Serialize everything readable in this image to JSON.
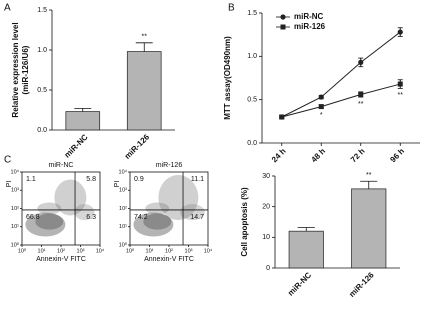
{
  "panel_labels": [
    "A",
    "B",
    "C"
  ],
  "chart_data": [
    {
      "type": "bar",
      "ylabel": [
        "Relative expression level",
        "(miR-126/U6)"
      ],
      "categories": [
        "miR-NC",
        "miR-126"
      ],
      "values": [
        0.23,
        0.98
      ],
      "errors": [
        0.04,
        0.11
      ],
      "color": "#b4b4b4",
      "ylim": [
        0,
        1.5
      ],
      "yticks": [
        {
          "value": 0,
          "label": "0.0"
        },
        0.5,
        {
          "value": 1,
          "label": "1.0"
        },
        1.5
      ],
      "annotations": [
        {
          "x": "miR-126",
          "text": "**"
        }
      ]
    },
    {
      "type": "line",
      "ylabel": "MTT assay(OD490nm)",
      "categories": [
        "24 h",
        "48 h",
        "72 h",
        "96 h"
      ],
      "series": [
        {
          "name": "miR-NC",
          "color": "#222222",
          "marker": "circle",
          "values": [
            0.3,
            0.53,
            0.93,
            1.28
          ],
          "errors": [
            0.02,
            0.02,
            0.05,
            0.05
          ]
        },
        {
          "name": "miR-126",
          "color": "#222222",
          "marker": "square",
          "values": [
            0.3,
            0.42,
            0.56,
            0.68
          ],
          "errors": [
            0.02,
            0.02,
            0.03,
            0.05
          ]
        }
      ],
      "ylim": [
        0,
        1.5
      ],
      "yticks": [
        {
          "value": 0,
          "label": "0.0"
        },
        0.5,
        {
          "value": 1,
          "label": "1.0"
        },
        1.5
      ],
      "legend": "upper-left",
      "annotations": [
        {
          "x": "48 h",
          "series": "miR-126",
          "text": "*"
        },
        {
          "x": "72 h",
          "series": "miR-126",
          "text": "**"
        },
        {
          "x": "96 h",
          "series": "miR-126",
          "text": "**"
        }
      ]
    },
    {
      "type": "flow",
      "title": "miR-NC",
      "xlabel": "Annexin-V FITC",
      "ylabel": "PI",
      "log_scale": true,
      "xlim": [
        1,
        10000
      ],
      "ylim": [
        1,
        10000
      ],
      "xticks": [
        {
          "value": 1,
          "label": "10⁰"
        },
        {
          "value": 10,
          "label": "10¹"
        },
        {
          "value": 100,
          "label": "10²"
        },
        {
          "value": 1000,
          "label": "10³"
        },
        {
          "value": 10000,
          "label": "10⁴"
        }
      ],
      "yticks": [
        {
          "value": 1,
          "label": "10⁰"
        },
        {
          "value": 10,
          "label": "10¹"
        },
        {
          "value": 100,
          "label": "10²"
        },
        {
          "value": 1000,
          "label": "10³"
        },
        {
          "value": 10000,
          "label": "10⁴"
        }
      ],
      "quadrants": [
        1.1,
        5.8,
        66.8,
        6.3
      ]
    },
    {
      "type": "flow",
      "title": "miR-126",
      "xlabel": "Annexin-V FITC",
      "ylabel": "PI",
      "log_scale": true,
      "xlim": [
        1,
        10000
      ],
      "ylim": [
        1,
        10000
      ],
      "xticks": [
        {
          "value": 1,
          "label": "10⁰"
        },
        {
          "value": 10,
          "label": "10¹"
        },
        {
          "value": 100,
          "label": "10²"
        },
        {
          "value": 1000,
          "label": "10³"
        },
        {
          "value": 10000,
          "label": "10⁴"
        }
      ],
      "yticks": [
        {
          "value": 1,
          "label": "10⁰"
        },
        {
          "value": 10,
          "label": "10¹"
        },
        {
          "value": 100,
          "label": "10²"
        },
        {
          "value": 1000,
          "label": "10³"
        },
        {
          "value": 10000,
          "label": "10⁴"
        }
      ],
      "quadrants": [
        0.9,
        11.1,
        74.2,
        14.7
      ]
    },
    {
      "type": "bar",
      "ylabel": [
        "Cell apoptosis (%)"
      ],
      "categories": [
        "miR-NC",
        "miR-126"
      ],
      "values": [
        12,
        25.8
      ],
      "errors": [
        1.2,
        2.5
      ],
      "color": "#b4b4b4",
      "ylim": [
        0,
        30
      ],
      "yticks": [
        0,
        10,
        20,
        30
      ],
      "annotations": [
        {
          "x": "miR-126",
          "text": "**"
        }
      ]
    }
  ]
}
